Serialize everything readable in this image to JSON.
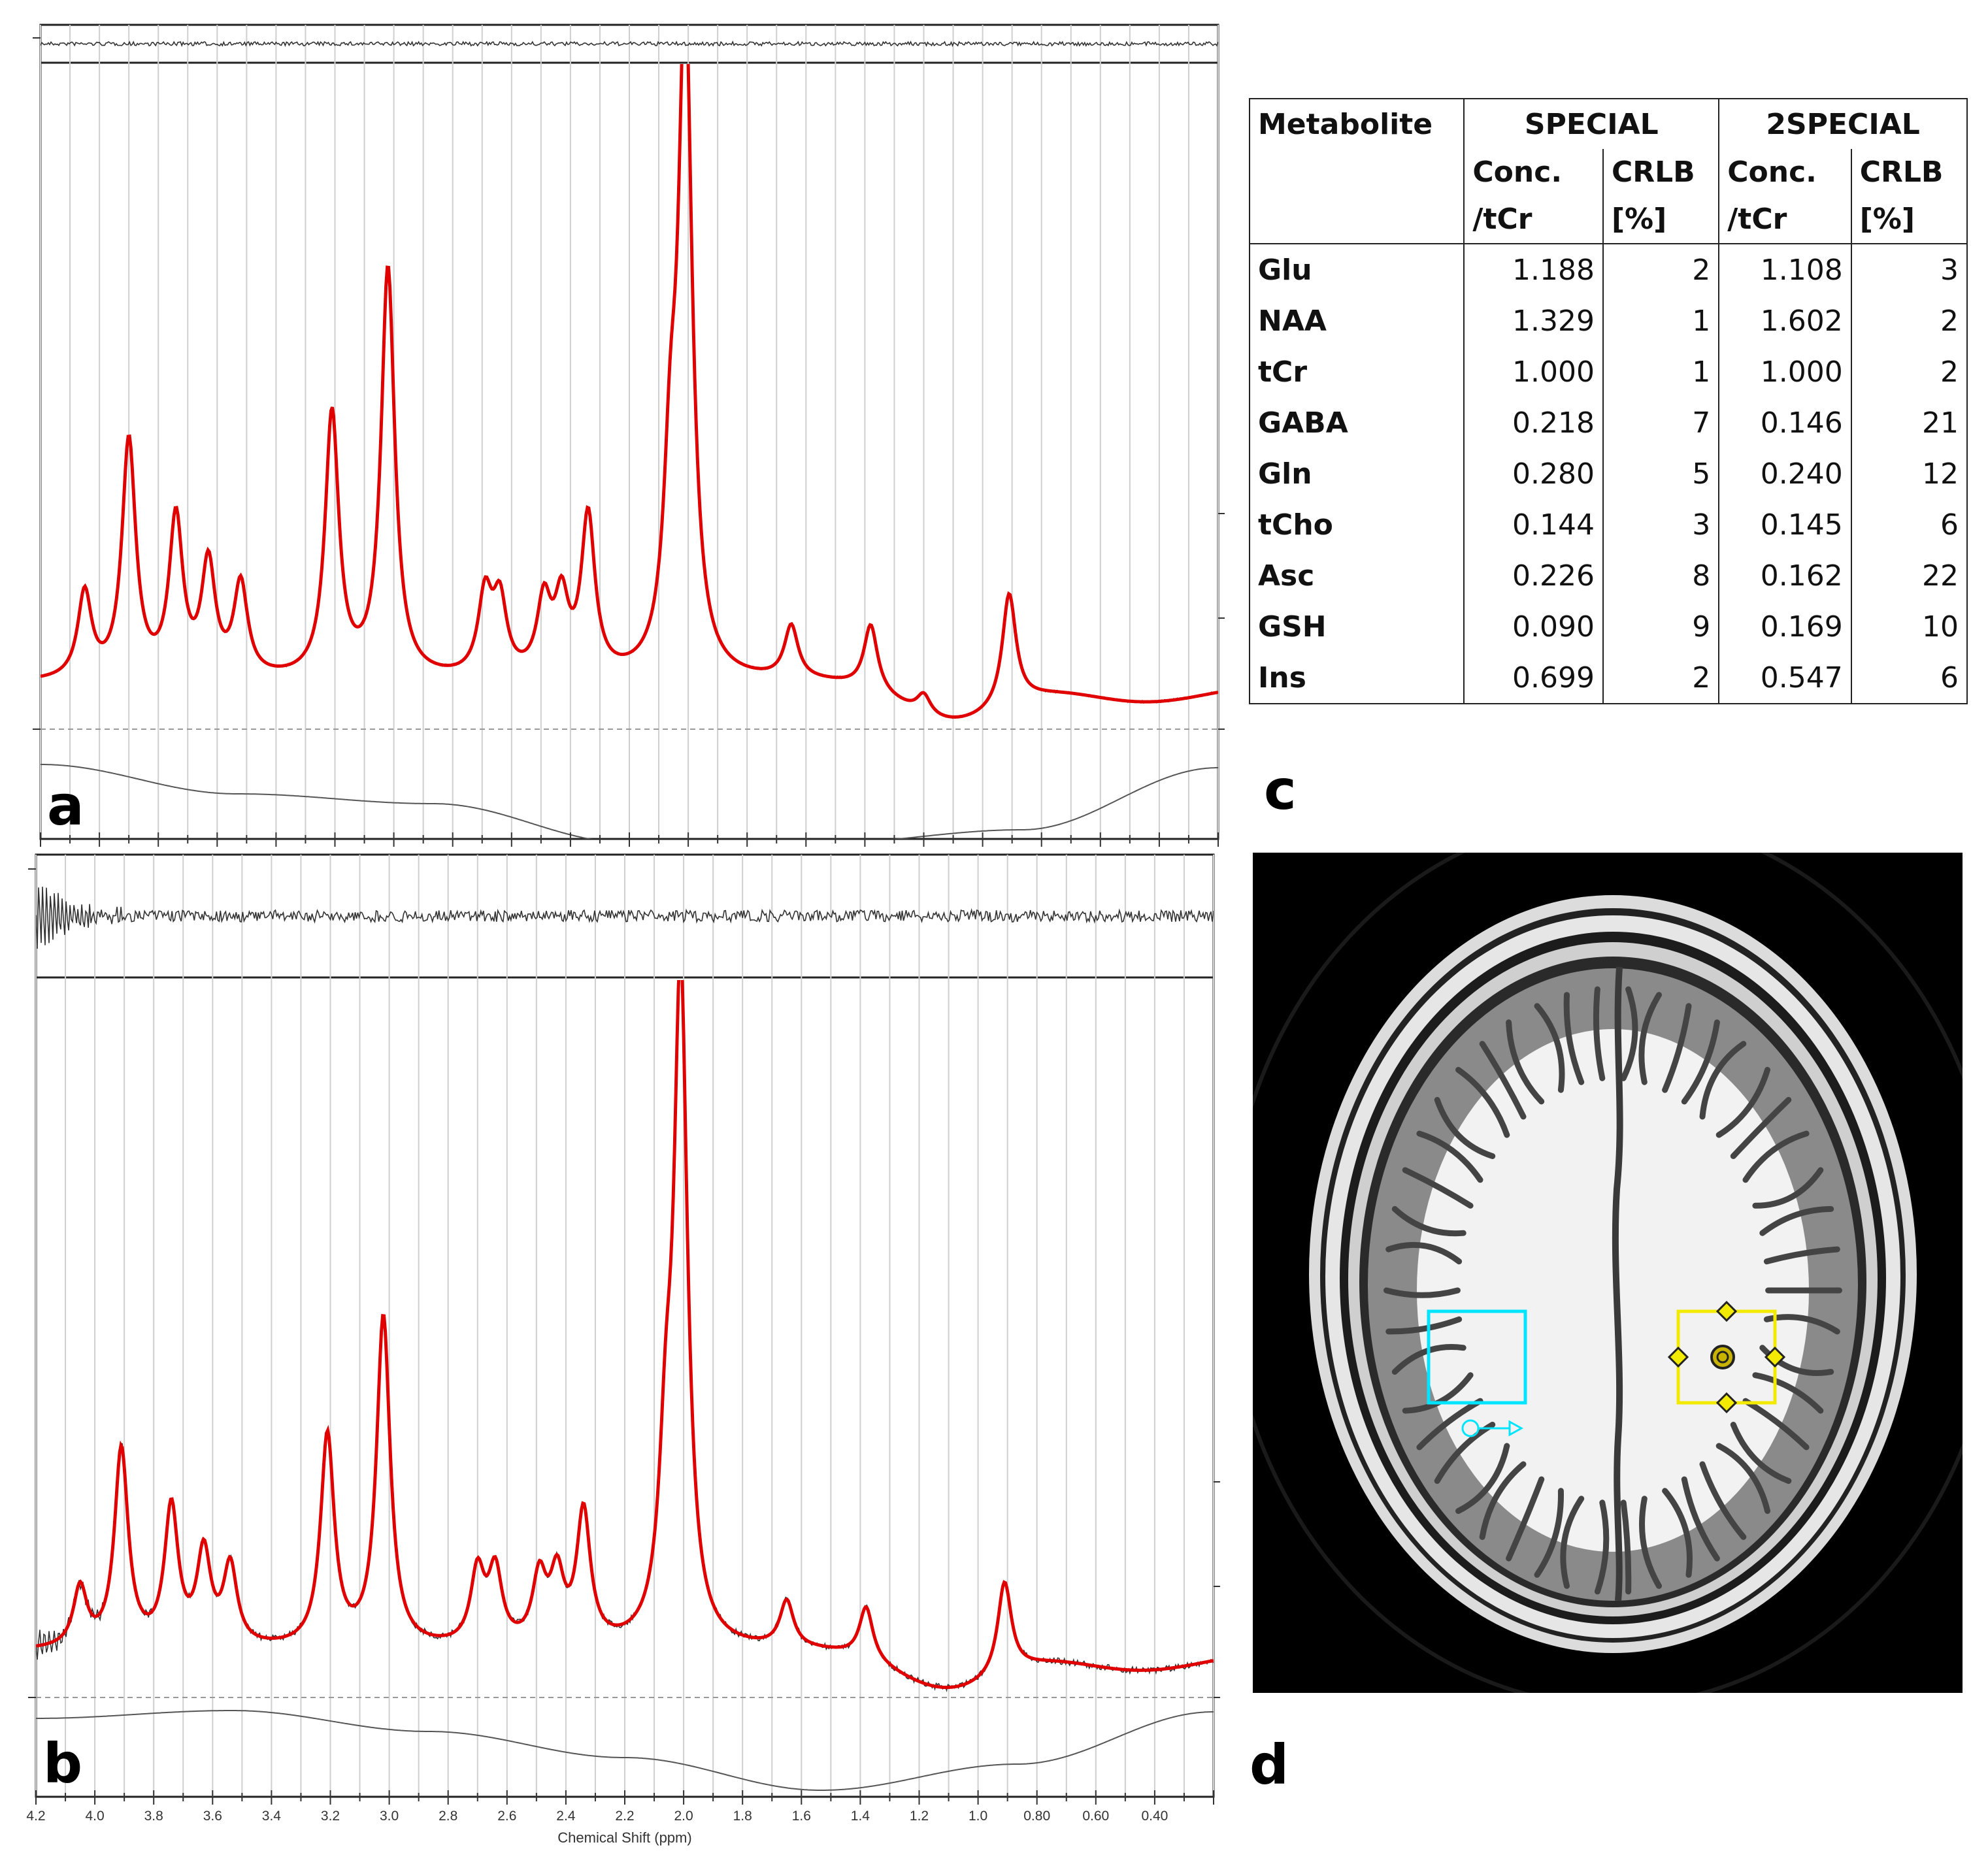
{
  "panels": {
    "a": "a",
    "b": "b",
    "c": "c",
    "d": "d"
  },
  "chart_data": [
    {
      "panel": "a",
      "type": "line",
      "description_note": "MRS spectrum (SPECIAL) with LCModel fit, residual on top, baseline below",
      "xlabel": "",
      "x_reversed": true,
      "xlim": [
        4.2,
        0.2
      ],
      "grid": true,
      "series_colors": {
        "spectrum": "#333333",
        "fit": "#e00000",
        "baseline": "#333333",
        "residual": "#333333"
      },
      "peaks": [
        {
          "ppm": 4.05,
          "height": 0.13
        },
        {
          "ppm": 3.9,
          "height": 0.36
        },
        {
          "ppm": 3.74,
          "height": 0.24
        },
        {
          "ppm": 3.63,
          "height": 0.17
        },
        {
          "ppm": 3.52,
          "height": 0.14
        },
        {
          "ppm": 3.21,
          "height": 0.4
        },
        {
          "ppm": 3.02,
          "height": 0.62
        },
        {
          "ppm": 2.69,
          "height": 0.12
        },
        {
          "ppm": 2.64,
          "height": 0.11
        },
        {
          "ppm": 2.49,
          "height": 0.11
        },
        {
          "ppm": 2.43,
          "height": 0.11
        },
        {
          "ppm": 2.34,
          "height": 0.24
        },
        {
          "ppm": 2.06,
          "height": 0.26
        },
        {
          "ppm": 2.01,
          "height": 1.0
        },
        {
          "ppm": 1.65,
          "height": 0.08
        },
        {
          "ppm": 1.38,
          "height": 0.1
        },
        {
          "ppm": 1.2,
          "height": 0.03
        },
        {
          "ppm": 0.91,
          "height": 0.17
        }
      ]
    },
    {
      "panel": "b",
      "type": "line",
      "description_note": "MRS spectrum (2SPECIAL) with LCModel fit, residual on top, baseline below",
      "xlabel": "Chemical Shift (ppm)",
      "x_reversed": true,
      "xlim": [
        4.2,
        0.2
      ],
      "x_ticks": [
        "4.2",
        "4.0",
        "3.8",
        "3.6",
        "3.4",
        "3.2",
        "3.0",
        "2.8",
        "2.6",
        "2.4",
        "2.2",
        "2.0",
        "1.8",
        "1.6",
        "1.4",
        "1.2",
        "1.0",
        "0.80",
        "0.60",
        "0.40"
      ],
      "grid": true,
      "series_colors": {
        "spectrum": "#333333",
        "fit": "#e00000",
        "baseline": "#333333",
        "residual": "#333333"
      },
      "peaks": [
        {
          "ppm": 4.05,
          "height": 0.09
        },
        {
          "ppm": 3.91,
          "height": 0.3
        },
        {
          "ppm": 3.74,
          "height": 0.21
        },
        {
          "ppm": 3.63,
          "height": 0.14
        },
        {
          "ppm": 3.54,
          "height": 0.12
        },
        {
          "ppm": 3.21,
          "height": 0.32
        },
        {
          "ppm": 3.02,
          "height": 0.5
        },
        {
          "ppm": 2.7,
          "height": 0.11
        },
        {
          "ppm": 2.64,
          "height": 0.11
        },
        {
          "ppm": 2.49,
          "height": 0.1
        },
        {
          "ppm": 2.43,
          "height": 0.1
        },
        {
          "ppm": 2.34,
          "height": 0.2
        },
        {
          "ppm": 2.06,
          "height": 0.24
        },
        {
          "ppm": 2.01,
          "height": 1.0
        },
        {
          "ppm": 1.65,
          "height": 0.07
        },
        {
          "ppm": 1.38,
          "height": 0.08
        },
        {
          "ppm": 0.91,
          "height": 0.14
        }
      ]
    },
    {
      "panel": "c",
      "type": "table",
      "columns": [
        "Metabolite",
        "SPECIAL",
        "2SPECIAL"
      ],
      "subcolumns": [
        [
          "Conc.",
          "/tCr"
        ],
        [
          "CRLB",
          "[%]"
        ],
        [
          "Conc.",
          "/tCr"
        ],
        [
          "CRLB",
          "[%]"
        ]
      ],
      "rows": [
        {
          "metabolite": "Glu",
          "special_conc": "1.188",
          "special_crlb": "2",
          "twospecial_conc": "1.108",
          "twospecial_crlb": "3"
        },
        {
          "metabolite": "NAA",
          "special_conc": "1.329",
          "special_crlb": "1",
          "twospecial_conc": "1.602",
          "twospecial_crlb": "2"
        },
        {
          "metabolite": "tCr",
          "special_conc": "1.000",
          "special_crlb": "1",
          "twospecial_conc": "1.000",
          "twospecial_crlb": "2"
        },
        {
          "metabolite": "GABA",
          "special_conc": "0.218",
          "special_crlb": "7",
          "twospecial_conc": "0.146",
          "twospecial_crlb": "21"
        },
        {
          "metabolite": "Gln",
          "special_conc": "0.280",
          "special_crlb": "5",
          "twospecial_conc": "0.240",
          "twospecial_crlb": "12"
        },
        {
          "metabolite": "tCho",
          "special_conc": "0.144",
          "special_crlb": "3",
          "twospecial_conc": "0.145",
          "twospecial_crlb": "6"
        },
        {
          "metabolite": "Asc",
          "special_conc": "0.226",
          "special_crlb": "8",
          "twospecial_conc": "0.162",
          "twospecial_crlb": "22"
        },
        {
          "metabolite": "GSH",
          "special_conc": "0.090",
          "special_crlb": "9",
          "twospecial_conc": "0.169",
          "twospecial_crlb": "10"
        },
        {
          "metabolite": "Ins",
          "special_conc": "0.699",
          "special_crlb": "2",
          "twospecial_conc": "0.547",
          "twospecial_crlb": "6"
        }
      ]
    }
  ],
  "table": {
    "col_metabolite": "Metabolite",
    "col_special": "SPECIAL",
    "col_2special": "2SPECIAL",
    "sub_conc_1": "Conc.",
    "sub_conc_2": "/tCr",
    "sub_crlb_1": "CRLB",
    "sub_crlb_2": "[%]"
  },
  "mri": {
    "voxel_left_color": "#00e5ff",
    "voxel_right_color": "#f2ea00",
    "background": "#000000"
  }
}
